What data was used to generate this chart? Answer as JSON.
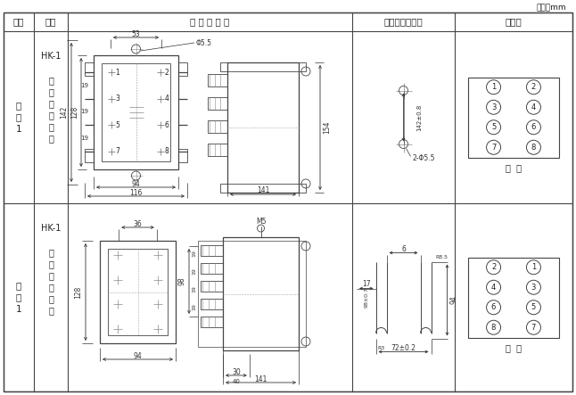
{
  "unit_label": "单位：mm",
  "col_headers": [
    "图号",
    "结构",
    "外 形 尺 寸 图",
    "安装开孔尺尺图",
    "端子图"
  ],
  "col_header_3": "安装开孔尺尺图",
  "row1_fig": [
    "附",
    "图",
    "1"
  ],
  "row1_hk": "HK-1",
  "row1_struct": [
    "凸",
    "出",
    "式",
    "前",
    "接",
    "线"
  ],
  "row2_fig": [
    "附",
    "图",
    "1"
  ],
  "row2_hk": "HK-1",
  "row2_struct": [
    "凸",
    "出",
    "式",
    "后",
    "接",
    "线"
  ],
  "front_view_label": "前  视",
  "rear_view_label": "背  视",
  "bg_color": "#ffffff",
  "lc": "#444444",
  "tc": "#222222",
  "dc": "#333333"
}
